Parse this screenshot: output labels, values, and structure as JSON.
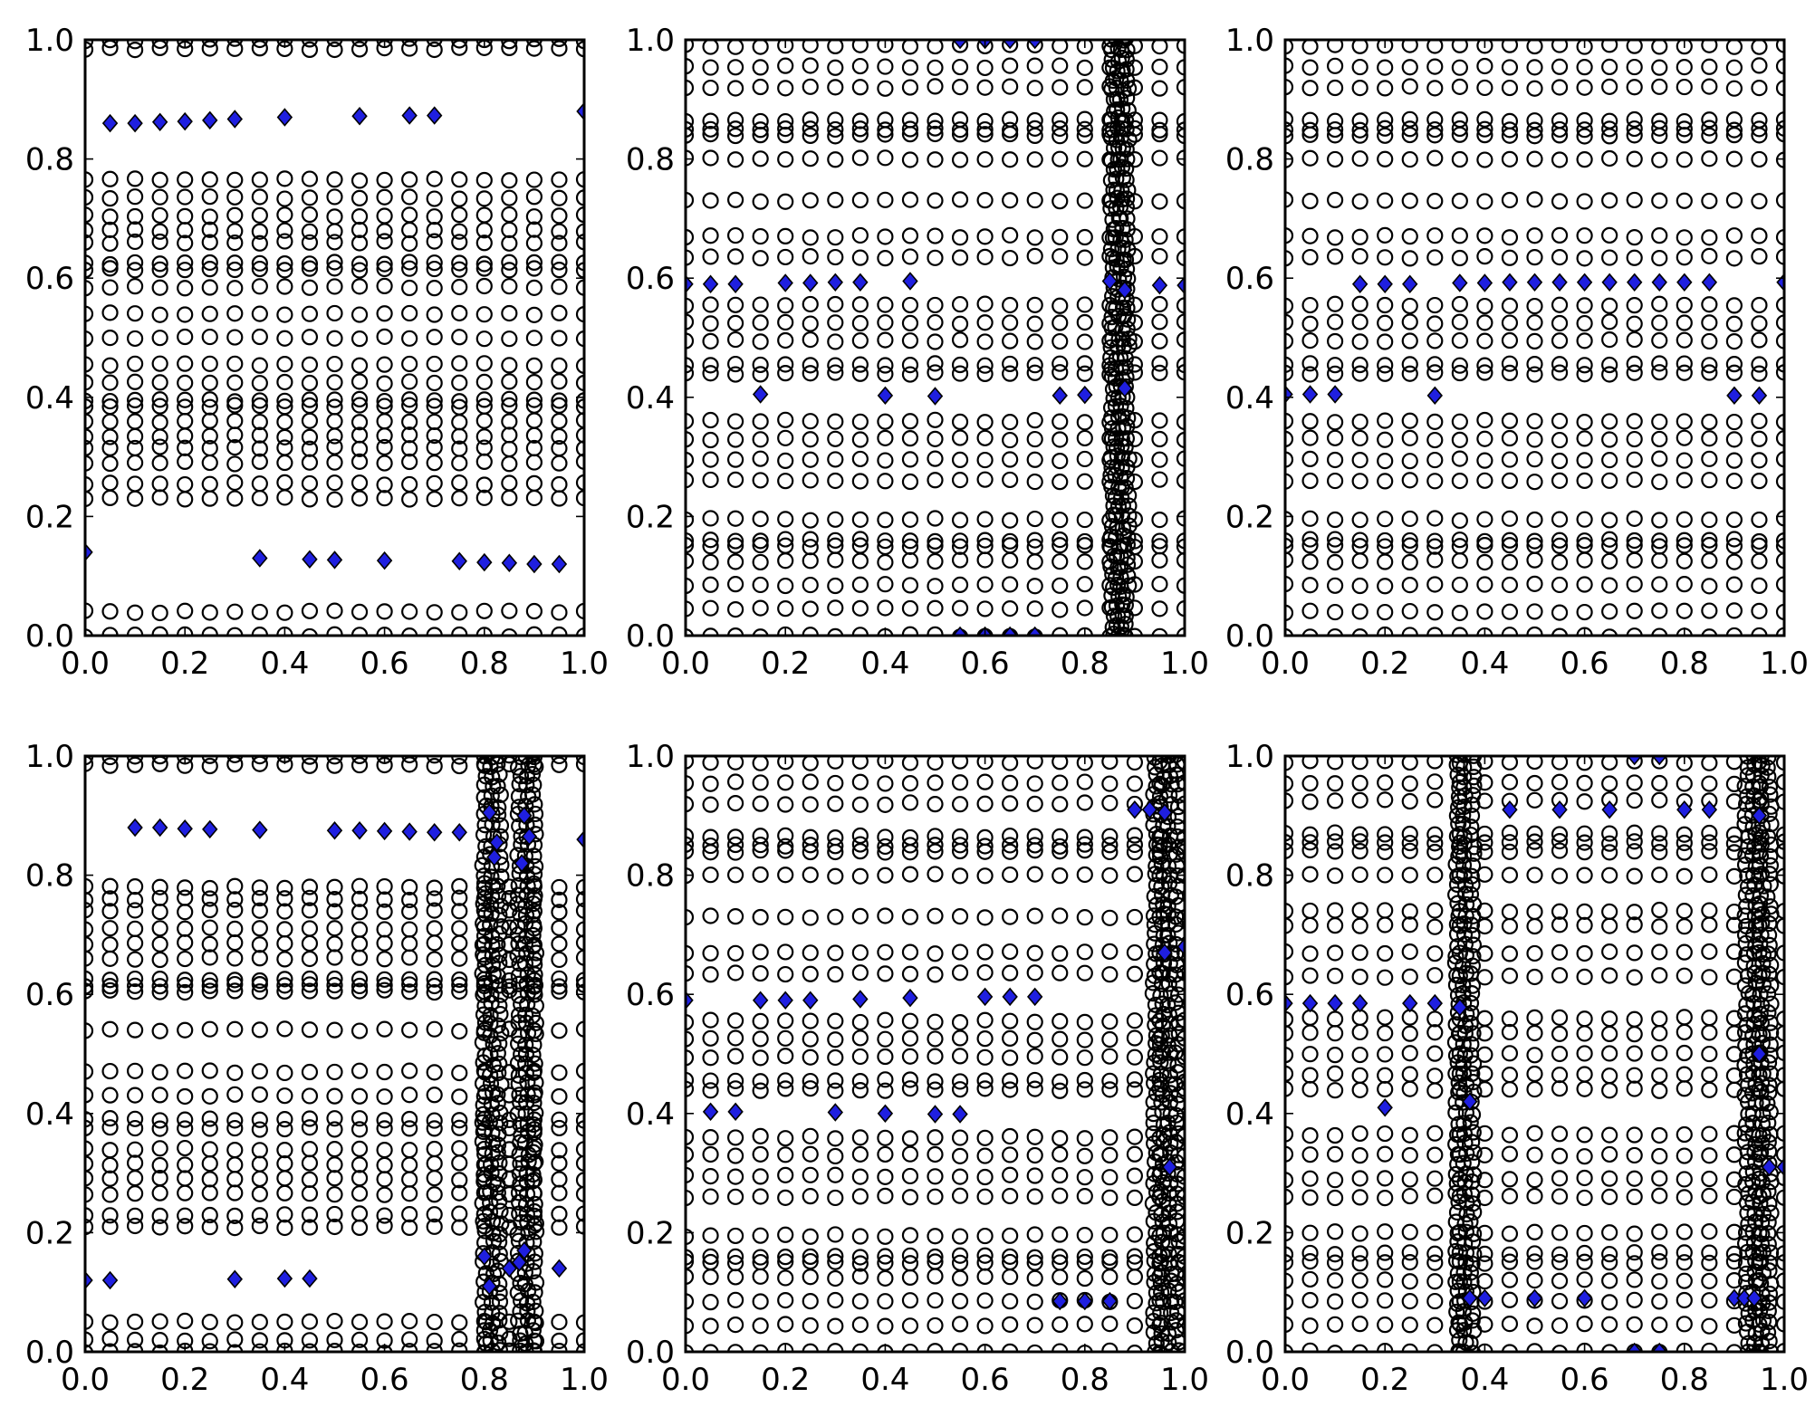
{
  "figure": {
    "background": "#ffffff",
    "circle_color": "#000000",
    "diamond_color": "#1f1fe0"
  },
  "chart_data": [
    {
      "type": "scatter",
      "panel": "top-left",
      "xlim": [
        0,
        1
      ],
      "ylim": [
        0,
        1
      ],
      "xticks": [
        "0.0",
        "0.2",
        "0.4",
        "0.6",
        "0.8",
        "1.0"
      ],
      "yticks": [
        "0.0",
        "0.2",
        "0.4",
        "0.6",
        "0.8",
        "1.0"
      ],
      "circle_rows": [
        0.0,
        0.04,
        0.23,
        0.255,
        0.29,
        0.315,
        0.335,
        0.36,
        0.385,
        0.395,
        0.425,
        0.455,
        0.5,
        0.54,
        0.585,
        0.615,
        0.625,
        0.66,
        0.68,
        0.705,
        0.735,
        0.765,
        0.985,
        1.0
      ],
      "circle_x": [
        0.0,
        0.05,
        0.1,
        0.15,
        0.2,
        0.25,
        0.3,
        0.35,
        0.4,
        0.45,
        0.5,
        0.55,
        0.6,
        0.65,
        0.7,
        0.75,
        0.8,
        0.85,
        0.9,
        0.95,
        1.0
      ],
      "circle_x_dense": [],
      "diamonds": [
        [
          0.05,
          0.86
        ],
        [
          0.1,
          0.86
        ],
        [
          0.15,
          0.862
        ],
        [
          0.2,
          0.863
        ],
        [
          0.25,
          0.865
        ],
        [
          0.3,
          0.867
        ],
        [
          0.4,
          0.87
        ],
        [
          0.55,
          0.872
        ],
        [
          0.65,
          0.873
        ],
        [
          0.7,
          0.873
        ],
        [
          1.0,
          0.88
        ],
        [
          0.0,
          0.14
        ],
        [
          0.35,
          0.13
        ],
        [
          0.45,
          0.128
        ],
        [
          0.5,
          0.127
        ],
        [
          0.6,
          0.126
        ],
        [
          0.75,
          0.125
        ],
        [
          0.8,
          0.123
        ],
        [
          0.85,
          0.122
        ],
        [
          0.9,
          0.12
        ],
        [
          0.95,
          0.12
        ]
      ]
    },
    {
      "type": "scatter",
      "panel": "top-center",
      "xlim": [
        0,
        1
      ],
      "ylim": [
        0,
        1
      ],
      "xticks": [
        "0.0",
        "0.2",
        "0.4",
        "0.6",
        "0.8",
        "1.0"
      ],
      "yticks": [
        "0.0",
        "0.2",
        "0.4",
        "0.6",
        "0.8",
        "1.0"
      ],
      "circle_rows": [
        0.0,
        0.045,
        0.085,
        0.125,
        0.15,
        0.16,
        0.195,
        0.26,
        0.295,
        0.33,
        0.36,
        0.44,
        0.455,
        0.495,
        0.525,
        0.555,
        0.635,
        0.67,
        0.73,
        0.8,
        0.84,
        0.85,
        0.865,
        0.92,
        0.955,
        0.99
      ],
      "circle_x": [
        0.0,
        0.05,
        0.1,
        0.15,
        0.2,
        0.25,
        0.3,
        0.35,
        0.4,
        0.45,
        0.5,
        0.55,
        0.6,
        0.65,
        0.7,
        0.75,
        0.8,
        0.85,
        0.9,
        0.95,
        1.0
      ],
      "circle_x_dense": [
        0.855,
        0.865,
        0.875,
        0.885
      ],
      "diamonds": [
        [
          0.0,
          0.59
        ],
        [
          0.05,
          0.59
        ],
        [
          0.1,
          0.59
        ],
        [
          0.2,
          0.592
        ],
        [
          0.25,
          0.592
        ],
        [
          0.3,
          0.593
        ],
        [
          0.35,
          0.593
        ],
        [
          0.45,
          0.595
        ],
        [
          0.85,
          0.595
        ],
        [
          0.88,
          0.58
        ],
        [
          0.95,
          0.588
        ],
        [
          1.0,
          0.588
        ],
        [
          0.15,
          0.405
        ],
        [
          0.4,
          0.403
        ],
        [
          0.5,
          0.402
        ],
        [
          0.75,
          0.403
        ],
        [
          0.8,
          0.404
        ],
        [
          0.88,
          0.415
        ],
        [
          0.55,
          1.0
        ],
        [
          0.6,
          1.0
        ],
        [
          0.65,
          1.0
        ],
        [
          0.7,
          1.0
        ],
        [
          0.55,
          0.0
        ],
        [
          0.6,
          0.0
        ],
        [
          0.65,
          0.0
        ],
        [
          0.7,
          0.0
        ]
      ]
    },
    {
      "type": "scatter",
      "panel": "top-right",
      "xlim": [
        0,
        1
      ],
      "ylim": [
        0,
        1
      ],
      "xticks": [
        "0.0",
        "0.2",
        "0.4",
        "0.6",
        "0.8",
        "1.0"
      ],
      "yticks": [
        "0.0",
        "0.2",
        "0.4",
        "0.6",
        "0.8",
        "1.0"
      ],
      "circle_rows": [
        0.0,
        0.04,
        0.085,
        0.125,
        0.15,
        0.16,
        0.195,
        0.26,
        0.295,
        0.33,
        0.36,
        0.44,
        0.455,
        0.495,
        0.525,
        0.555,
        0.635,
        0.67,
        0.73,
        0.8,
        0.84,
        0.85,
        0.865,
        0.92,
        0.955,
        0.99
      ],
      "circle_x": [
        0.0,
        0.05,
        0.1,
        0.15,
        0.2,
        0.25,
        0.3,
        0.35,
        0.4,
        0.45,
        0.5,
        0.55,
        0.6,
        0.65,
        0.7,
        0.75,
        0.8,
        0.85,
        0.9,
        0.95,
        1.0
      ],
      "circle_x_dense": [],
      "diamonds": [
        [
          0.15,
          0.59
        ],
        [
          0.2,
          0.59
        ],
        [
          0.25,
          0.59
        ],
        [
          0.35,
          0.592
        ],
        [
          0.4,
          0.592
        ],
        [
          0.45,
          0.593
        ],
        [
          0.5,
          0.593
        ],
        [
          0.55,
          0.593
        ],
        [
          0.6,
          0.593
        ],
        [
          0.65,
          0.593
        ],
        [
          0.7,
          0.593
        ],
        [
          0.75,
          0.593
        ],
        [
          0.8,
          0.593
        ],
        [
          0.85,
          0.593
        ],
        [
          1.0,
          0.593
        ],
        [
          0.0,
          0.405
        ],
        [
          0.05,
          0.405
        ],
        [
          0.1,
          0.405
        ],
        [
          0.3,
          0.403
        ],
        [
          0.9,
          0.403
        ],
        [
          0.95,
          0.403
        ]
      ]
    },
    {
      "type": "scatter",
      "panel": "bottom-left",
      "xlim": [
        0,
        1
      ],
      "ylim": [
        0,
        1
      ],
      "xticks": [
        "0.0",
        "0.2",
        "0.4",
        "0.6",
        "0.8",
        "1.0"
      ],
      "yticks": [
        "0.0",
        "0.2",
        "0.4",
        "0.6",
        "0.8",
        "1.0"
      ],
      "circle_rows": [
        0.0,
        0.02,
        0.05,
        0.21,
        0.23,
        0.265,
        0.29,
        0.315,
        0.34,
        0.375,
        0.39,
        0.43,
        0.47,
        0.54,
        0.605,
        0.615,
        0.625,
        0.66,
        0.685,
        0.71,
        0.74,
        0.76,
        0.78,
        0.985,
        1.0
      ],
      "circle_x": [
        0.0,
        0.05,
        0.1,
        0.15,
        0.2,
        0.25,
        0.3,
        0.35,
        0.4,
        0.45,
        0.5,
        0.55,
        0.6,
        0.65,
        0.7,
        0.75,
        0.8,
        0.85,
        0.9,
        0.95,
        1.0
      ],
      "circle_x_dense": [
        0.8,
        0.815,
        0.83,
        0.87,
        0.885,
        0.9
      ],
      "diamonds": [
        [
          0.1,
          0.88
        ],
        [
          0.15,
          0.88
        ],
        [
          0.2,
          0.878
        ],
        [
          0.25,
          0.877
        ],
        [
          0.35,
          0.876
        ],
        [
          0.5,
          0.875
        ],
        [
          0.55,
          0.875
        ],
        [
          0.6,
          0.874
        ],
        [
          0.65,
          0.873
        ],
        [
          0.7,
          0.872
        ],
        [
          0.75,
          0.872
        ],
        [
          0.81,
          0.905
        ],
        [
          0.82,
          0.83
        ],
        [
          0.825,
          0.855
        ],
        [
          0.88,
          0.9
        ],
        [
          0.89,
          0.865
        ],
        [
          0.875,
          0.82
        ],
        [
          1.0,
          0.86
        ],
        [
          0.0,
          0.12
        ],
        [
          0.05,
          0.12
        ],
        [
          0.3,
          0.122
        ],
        [
          0.4,
          0.123
        ],
        [
          0.45,
          0.123
        ],
        [
          0.81,
          0.11
        ],
        [
          0.8,
          0.16
        ],
        [
          0.85,
          0.14
        ],
        [
          0.87,
          0.15
        ],
        [
          0.88,
          0.17
        ],
        [
          0.95,
          0.14
        ]
      ]
    },
    {
      "type": "scatter",
      "panel": "bottom-center",
      "xlim": [
        0,
        1
      ],
      "ylim": [
        0,
        1
      ],
      "xticks": [
        "0.0",
        "0.2",
        "0.4",
        "0.6",
        "0.8",
        "1.0"
      ],
      "yticks": [
        "0.0",
        "0.2",
        "0.4",
        "0.6",
        "0.8",
        "1.0"
      ],
      "circle_rows": [
        0.0,
        0.045,
        0.085,
        0.125,
        0.15,
        0.16,
        0.195,
        0.26,
        0.295,
        0.33,
        0.36,
        0.44,
        0.455,
        0.495,
        0.525,
        0.555,
        0.635,
        0.67,
        0.73,
        0.8,
        0.84,
        0.85,
        0.865,
        0.92,
        0.955,
        0.99
      ],
      "circle_x": [
        0.0,
        0.05,
        0.1,
        0.15,
        0.2,
        0.25,
        0.3,
        0.35,
        0.4,
        0.45,
        0.5,
        0.55,
        0.6,
        0.65,
        0.7,
        0.75,
        0.8,
        0.85,
        0.9,
        0.95,
        1.0
      ],
      "circle_x_dense": [
        0.94,
        0.955,
        0.97,
        0.985
      ],
      "diamonds": [
        [
          0.0,
          0.59
        ],
        [
          0.15,
          0.59
        ],
        [
          0.2,
          0.59
        ],
        [
          0.25,
          0.59
        ],
        [
          0.35,
          0.592
        ],
        [
          0.45,
          0.594
        ],
        [
          0.6,
          0.596
        ],
        [
          0.65,
          0.596
        ],
        [
          0.7,
          0.596
        ],
        [
          0.05,
          0.403
        ],
        [
          0.1,
          0.403
        ],
        [
          0.3,
          0.402
        ],
        [
          0.4,
          0.4
        ],
        [
          0.5,
          0.399
        ],
        [
          0.55,
          0.399
        ],
        [
          0.9,
          0.91
        ],
        [
          0.93,
          0.91
        ],
        [
          0.96,
          0.905
        ],
        [
          0.96,
          0.67
        ],
        [
          1.0,
          0.68
        ],
        [
          0.97,
          0.31
        ],
        [
          0.75,
          0.085
        ],
        [
          0.8,
          0.085
        ],
        [
          0.85,
          0.085
        ]
      ]
    },
    {
      "type": "scatter",
      "panel": "bottom-right",
      "xlim": [
        0,
        1
      ],
      "ylim": [
        0,
        1
      ],
      "xticks": [
        "0.0",
        "0.2",
        "0.4",
        "0.6",
        "0.8",
        "1.0"
      ],
      "yticks": [
        "0.0",
        "0.2",
        "0.4",
        "0.6",
        "0.8",
        "1.0"
      ],
      "circle_rows": [
        0.0,
        0.045,
        0.085,
        0.12,
        0.15,
        0.165,
        0.2,
        0.26,
        0.29,
        0.33,
        0.365,
        0.44,
        0.465,
        0.5,
        0.535,
        0.56,
        0.63,
        0.67,
        0.715,
        0.74,
        0.8,
        0.84,
        0.855,
        0.87,
        0.925,
        0.955,
        0.99
      ],
      "circle_x": [
        0.0,
        0.05,
        0.1,
        0.15,
        0.2,
        0.25,
        0.3,
        0.35,
        0.4,
        0.45,
        0.5,
        0.55,
        0.6,
        0.65,
        0.7,
        0.75,
        0.8,
        0.85,
        0.9,
        0.95,
        1.0
      ],
      "circle_x_dense": [
        0.345,
        0.36,
        0.375,
        0.925,
        0.94,
        0.955,
        0.97
      ],
      "diamonds": [
        [
          0.0,
          0.585
        ],
        [
          0.05,
          0.585
        ],
        [
          0.1,
          0.585
        ],
        [
          0.15,
          0.585
        ],
        [
          0.25,
          0.585
        ],
        [
          0.3,
          0.585
        ],
        [
          0.35,
          0.578
        ],
        [
          0.2,
          0.41
        ],
        [
          0.37,
          0.42
        ],
        [
          0.45,
          0.91
        ],
        [
          0.55,
          0.91
        ],
        [
          0.65,
          0.91
        ],
        [
          0.8,
          0.91
        ],
        [
          0.85,
          0.91
        ],
        [
          0.95,
          0.9
        ],
        [
          0.7,
          1.0
        ],
        [
          0.75,
          1.0
        ],
        [
          0.95,
          0.5
        ],
        [
          0.97,
          0.31
        ],
        [
          1.0,
          0.31
        ],
        [
          0.37,
          0.09
        ],
        [
          0.4,
          0.09
        ],
        [
          0.5,
          0.09
        ],
        [
          0.6,
          0.09
        ],
        [
          0.9,
          0.09
        ],
        [
          0.92,
          0.09
        ],
        [
          0.94,
          0.09
        ],
        [
          0.7,
          0.0
        ],
        [
          0.75,
          0.0
        ]
      ]
    }
  ]
}
